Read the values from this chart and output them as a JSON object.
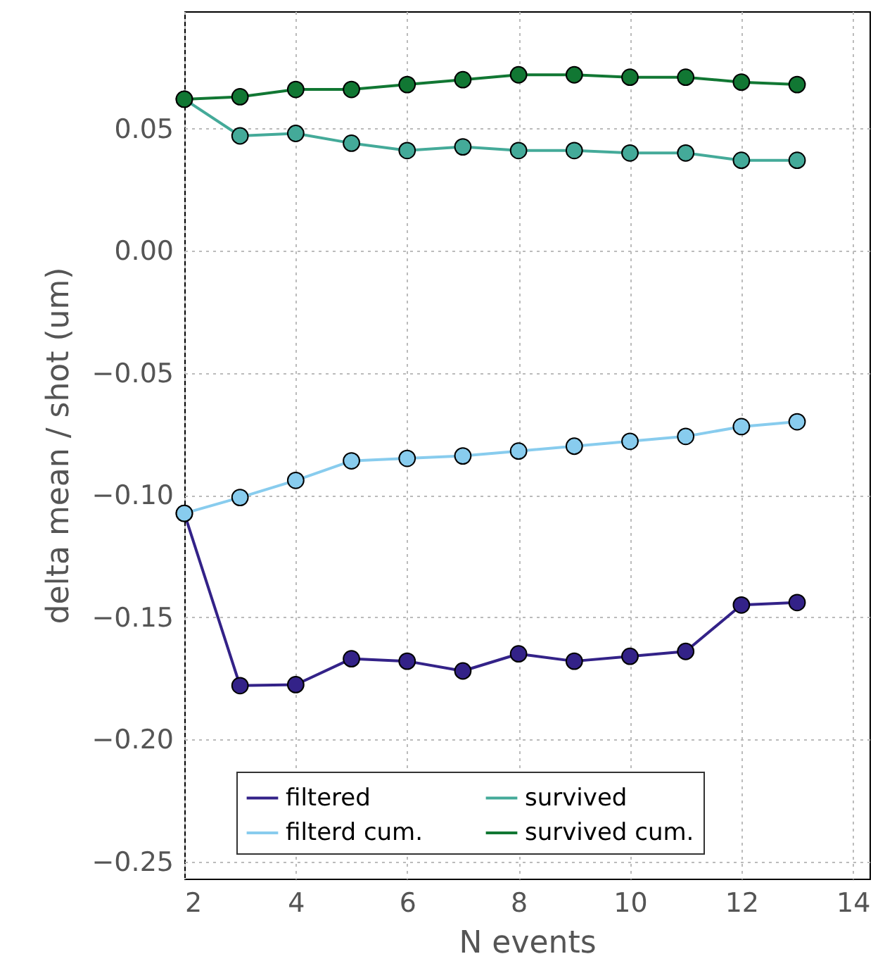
{
  "chart_data": {
    "type": "line",
    "xlabel": "N events",
    "ylabel": "delta mean / shot (um)",
    "x": [
      2,
      3,
      4,
      5,
      6,
      7,
      8,
      9,
      10,
      11,
      12,
      13
    ],
    "series": [
      {
        "name": "filtered",
        "color": "#332288",
        "values": [
          -0.1075,
          -0.178,
          -0.1776,
          -0.167,
          -0.168,
          -0.172,
          -0.165,
          -0.168,
          -0.166,
          -0.164,
          -0.145,
          -0.144
        ]
      },
      {
        "name": "filterd cum.",
        "color": "#88ccee",
        "values": [
          -0.1075,
          -0.101,
          -0.094,
          -0.086,
          -0.085,
          -0.084,
          -0.082,
          -0.08,
          -0.078,
          -0.076,
          -0.072,
          -0.07
        ]
      },
      {
        "name": "survived",
        "color": "#44aa99",
        "values": [
          0.062,
          0.047,
          0.048,
          0.044,
          0.041,
          0.0425,
          0.041,
          0.041,
          0.04,
          0.04,
          0.037,
          0.037
        ]
      },
      {
        "name": "survived cum.",
        "color": "#117733",
        "values": [
          0.062,
          0.063,
          0.066,
          0.066,
          0.068,
          0.07,
          0.072,
          0.072,
          0.071,
          0.071,
          0.069,
          0.068
        ]
      }
    ],
    "xlim": [
      2,
      14.3
    ],
    "xticks": [
      2,
      4,
      6,
      8,
      10,
      12,
      14
    ],
    "ylim": [
      -0.257,
      0.098
    ],
    "yticks": [
      {
        "value": -0.25,
        "label": "−0.25"
      },
      {
        "value": -0.2,
        "label": "−0.20"
      },
      {
        "value": -0.15,
        "label": "−0.15"
      },
      {
        "value": -0.1,
        "label": "−0.10"
      },
      {
        "value": -0.05,
        "label": "−0.05"
      },
      {
        "value": 0,
        "label": "0.00"
      },
      {
        "value": 0.05,
        "label": "0.05"
      }
    ],
    "grid": true,
    "legend": "bottom",
    "marker": "circle",
    "line_style": "solid"
  }
}
